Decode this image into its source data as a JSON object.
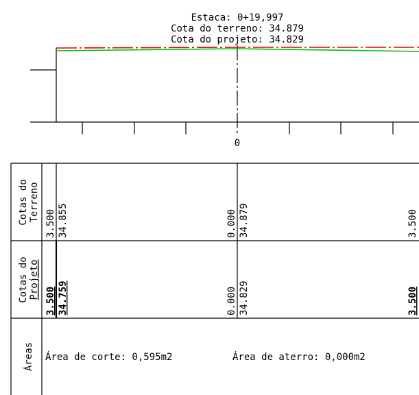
{
  "header": {
    "station": "Estaca: 0+19,997",
    "terrain_elevation": "Cota do terreno: 34.879",
    "project_elevation": "Cota do projeto: 34.829"
  },
  "axis": {
    "center_label": "0"
  },
  "profile": {
    "terrain_color": "#e00000",
    "project_color": "#00c000"
  },
  "table": {
    "row_terreno": {
      "label_line1": "Cotas do",
      "label_line2": "Terreno",
      "left_offset": "3.500",
      "left_value": "34.855",
      "center_offset": "0.000",
      "center_value": "34.879",
      "right_offset": "3.500"
    },
    "row_projeto": {
      "label_line1": "Cotas do",
      "label_line2": "Projeto",
      "left_offset": "3.500",
      "left_value": "34.759",
      "center_offset": "0.000",
      "center_value": "34.829",
      "right_offset": "3.500"
    },
    "row_areas": {
      "label": "Áreas",
      "cut_area": "Área de corte: 0,595m2",
      "fill_area": "Área de aterro: 0,000m2"
    }
  }
}
